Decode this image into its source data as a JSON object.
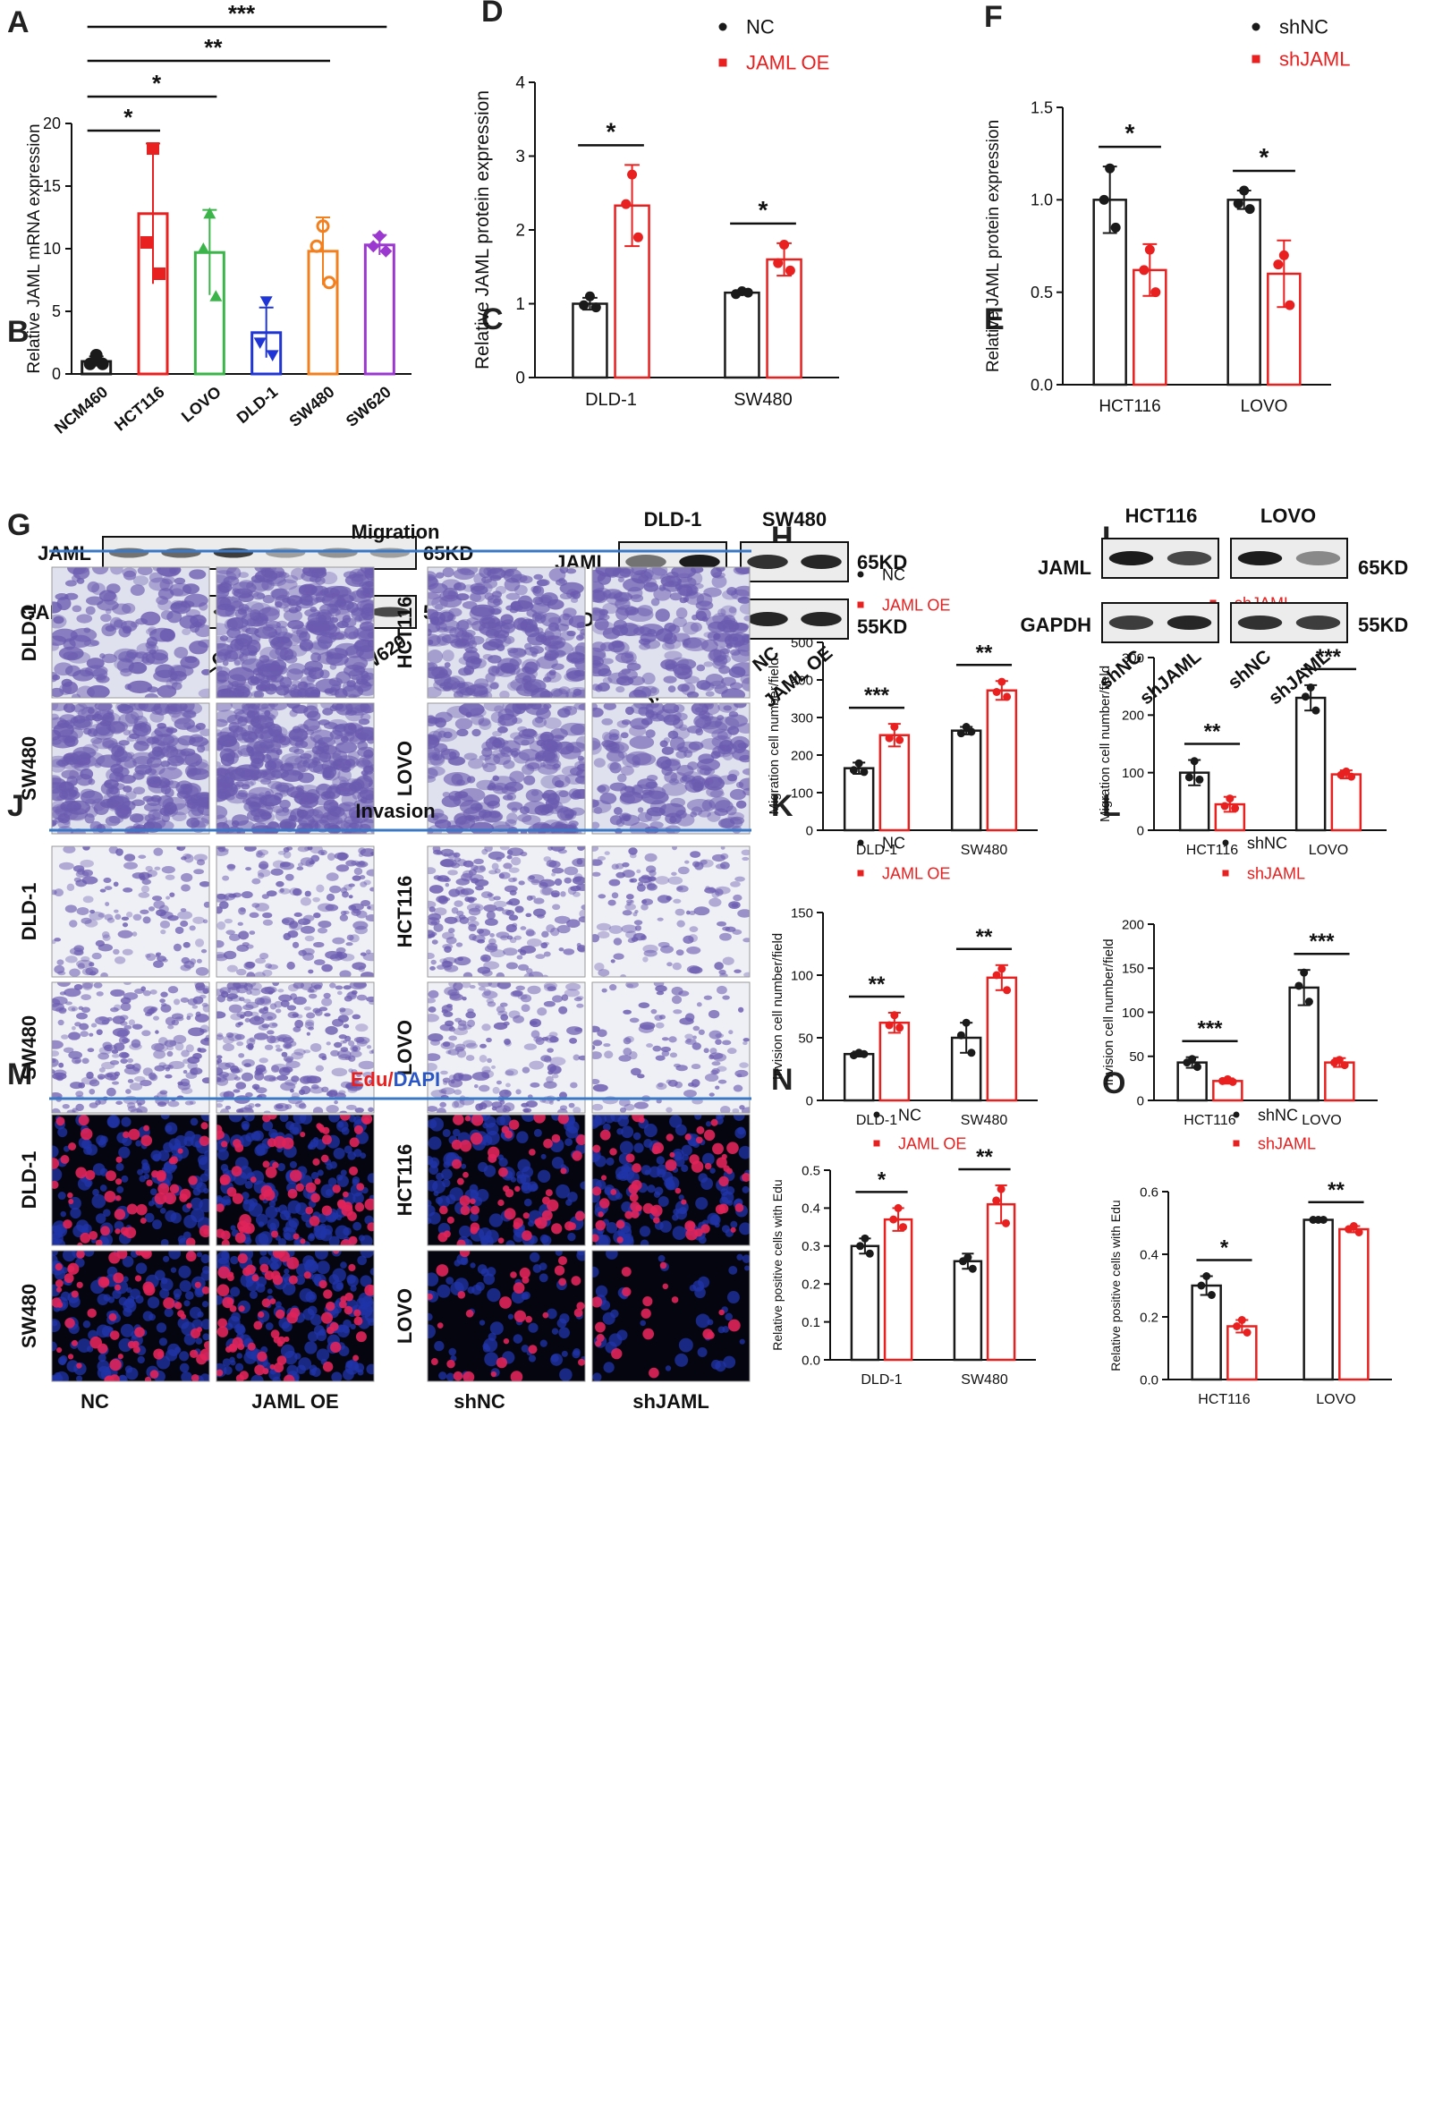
{
  "panel_letters": [
    "A",
    "B",
    "C",
    "D",
    "E",
    "F",
    "G",
    "H",
    "I",
    "J",
    "K",
    "L",
    "M",
    "N",
    "O"
  ],
  "colors": {
    "black": "#1a1a1a",
    "red": "#e8201f",
    "green": "#3bb54a",
    "blue": "#1f35d6",
    "orange": "#f2801f",
    "purple": "#9b38d0",
    "section_line": "#3a78c6",
    "stain_violet": "#6b5bb0",
    "edu_red": "#e0245a",
    "dapi_blue": "#2034a8"
  },
  "blots": {
    "B": {
      "rows": [
        "JAML",
        "GAPDH"
      ],
      "sizes": [
        "65KD",
        "55KD"
      ],
      "lanes": [
        "NCM460",
        "HCT116",
        "LOVO",
        "DLD-1",
        "SW480",
        "SW620"
      ]
    },
    "C": {
      "groups": [
        "DLD-1",
        "SW480"
      ],
      "rows": [
        "JAML",
        "GAPDH"
      ],
      "sizes": [
        "65KD",
        "55KD"
      ],
      "lanes": [
        "NC",
        "JAML OE",
        "NC",
        "JAML OE"
      ]
    },
    "E": {
      "groups": [
        "HCT116",
        "LOVO"
      ],
      "rows": [
        "JAML",
        "GAPDH"
      ],
      "sizes": [
        "65KD",
        "55KD"
      ],
      "lanes": [
        "shNC",
        "shJAML",
        "shNC",
        "shJAML"
      ]
    }
  },
  "image_panels": {
    "G": {
      "title": "Migration",
      "left_rows": [
        "DLD-1",
        "SW480"
      ],
      "right_rows": [
        "HCT116",
        "LOVO"
      ],
      "left_cols": [
        "NC",
        "JAML OE"
      ],
      "right_cols": [
        "shNC",
        "shJAML"
      ]
    },
    "J": {
      "title": "Invasion",
      "left_rows": [
        "DLD-1",
        "SW480"
      ],
      "right_rows": [
        "HCT116",
        "LOVO"
      ],
      "left_cols": [
        "NC",
        "JAML OE"
      ],
      "right_cols": [
        "shNC",
        "shJAML"
      ]
    },
    "M": {
      "title_part1": "Edu",
      "title_sep": "/",
      "title_part2": "DAPI",
      "left_rows": [
        "DLD-1",
        "SW480"
      ],
      "right_rows": [
        "HCT116",
        "LOVO"
      ],
      "left_cols": [
        "NC",
        "JAML OE"
      ],
      "right_cols": [
        "shNC",
        "shJAML"
      ]
    }
  },
  "chart_data": [
    {
      "panel": "A",
      "type": "bar",
      "ylabel": "Relative JAML mRNA expression",
      "categories": [
        "NCM460",
        "HCT116",
        "LOVO",
        "DLD-1",
        "SW480",
        "SW620"
      ],
      "values": [
        1.0,
        12.8,
        9.7,
        3.3,
        9.8,
        10.3
      ],
      "errors": [
        0.4,
        5.6,
        3.4,
        2.0,
        2.7,
        0.8
      ],
      "points": [
        [
          1.5,
          0.8,
          0.8
        ],
        [
          18.0,
          10.5,
          8.0
        ],
        [
          12.8,
          10.0,
          6.2
        ],
        [
          5.8,
          2.5,
          1.5
        ],
        [
          11.8,
          10.2,
          7.3
        ],
        [
          11.0,
          10.2,
          9.8
        ]
      ],
      "colors": [
        "#1a1a1a",
        "#e8201f",
        "#3bb54a",
        "#1f35d6",
        "#f2801f",
        "#9b38d0"
      ],
      "markers": [
        "circle",
        "square",
        "triangle",
        "triangle-down",
        "circle-open",
        "diamond"
      ],
      "ylim": [
        0,
        20
      ],
      "yticks": [
        0,
        5,
        10,
        15,
        20
      ],
      "significance": [
        {
          "from": 0,
          "to": 1,
          "label": "*"
        },
        {
          "from": 0,
          "to": 2,
          "label": "*"
        },
        {
          "from": 0,
          "to": 4,
          "label": "**"
        },
        {
          "from": 0,
          "to": 5,
          "label": "***"
        }
      ]
    },
    {
      "panel": "D",
      "type": "bar",
      "ylabel": "Relative JAML protein expression",
      "categories": [
        "DLD-1",
        "SW480"
      ],
      "legend_position": "top",
      "series": [
        {
          "name": "NC",
          "values": [
            1.0,
            1.15
          ],
          "errors": [
            0.08,
            0.03
          ],
          "points": [
            [
              1.1,
              0.98,
              0.95
            ],
            [
              1.17,
              1.13,
              1.15
            ]
          ]
        },
        {
          "name": "JAML OE",
          "values": [
            2.33,
            1.6
          ],
          "errors": [
            0.55,
            0.22
          ],
          "points": [
            [
              2.75,
              2.35,
              1.9
            ],
            [
              1.8,
              1.55,
              1.45
            ]
          ]
        }
      ],
      "ylim": [
        0,
        4
      ],
      "yticks": [
        0,
        1,
        2,
        3,
        4
      ],
      "significance": [
        "*",
        "*"
      ]
    },
    {
      "panel": "F",
      "type": "bar",
      "ylabel": "Relative JAML protein expression",
      "categories": [
        "HCT116",
        "LOVO"
      ],
      "legend_position": "top",
      "series": [
        {
          "name": "shNC",
          "values": [
            1.0,
            1.0
          ],
          "errors": [
            0.18,
            0.05
          ],
          "points": [
            [
              1.17,
              1.0,
              0.85
            ],
            [
              1.05,
              0.98,
              0.95
            ]
          ]
        },
        {
          "name": "shJAML",
          "values": [
            0.62,
            0.6
          ],
          "errors": [
            0.14,
            0.18
          ],
          "points": [
            [
              0.73,
              0.62,
              0.5
            ],
            [
              0.7,
              0.65,
              0.43
            ]
          ]
        }
      ],
      "ylim": [
        0,
        1.5
      ],
      "yticks": [
        0.0,
        0.5,
        1.0,
        1.5
      ],
      "significance": [
        "*",
        "*"
      ]
    },
    {
      "panel": "H",
      "type": "bar",
      "ylabel": "Migration cell number/field",
      "categories": [
        "DLD-1",
        "SW480"
      ],
      "legend_position": "top",
      "series": [
        {
          "name": "NC",
          "values": [
            165,
            265
          ],
          "errors": [
            15,
            10
          ],
          "points": [
            [
              178,
              160,
              155
            ],
            [
              275,
              258,
              262
            ]
          ]
        },
        {
          "name": "JAML OE",
          "values": [
            253,
            372
          ],
          "errors": [
            30,
            25
          ],
          "points": [
            [
              275,
              245,
              240
            ],
            [
              395,
              368,
              355
            ]
          ]
        }
      ],
      "ylim": [
        0,
        500
      ],
      "yticks": [
        0,
        100,
        200,
        300,
        400,
        500
      ],
      "significance": [
        "***",
        "**"
      ]
    },
    {
      "panel": "I",
      "type": "bar",
      "ylabel": "Migration cell number/field",
      "categories": [
        "HCT116",
        "LOVO"
      ],
      "legend_position": "top",
      "series": [
        {
          "name": "shNC",
          "values": [
            100,
            230
          ],
          "errors": [
            22,
            22
          ],
          "points": [
            [
              120,
              92,
              88
            ],
            [
              248,
              232,
              208
            ]
          ]
        },
        {
          "name": "shJAML",
          "values": [
            45,
            97
          ],
          "errors": [
            13,
            7
          ],
          "points": [
            [
              55,
              42,
              38
            ],
            [
              102,
              96,
              93
            ]
          ]
        }
      ],
      "ylim": [
        0,
        300
      ],
      "yticks": [
        0,
        100,
        200,
        300
      ],
      "significance": [
        "**",
        "***"
      ]
    },
    {
      "panel": "K",
      "type": "bar",
      "ylabel": "Invision cell number/field",
      "categories": [
        "DLD-1",
        "SW480"
      ],
      "legend_position": "top",
      "series": [
        {
          "name": "NC",
          "values": [
            37,
            50
          ],
          "errors": [
            2,
            12
          ],
          "points": [
            [
              38,
              36,
              37
            ],
            [
              62,
              52,
              38
            ]
          ]
        },
        {
          "name": "JAML OE",
          "values": [
            62,
            98
          ],
          "errors": [
            8,
            10
          ],
          "points": [
            [
              68,
              60,
              58
            ],
            [
              105,
              100,
              88
            ]
          ]
        }
      ],
      "ylim": [
        0,
        150
      ],
      "yticks": [
        0,
        50,
        100,
        150
      ],
      "significance": [
        "**",
        "**"
      ]
    },
    {
      "panel": "L",
      "type": "bar",
      "ylabel": "Invision cell number/field",
      "categories": [
        "HCT116",
        "LOVO"
      ],
      "legend_position": "top",
      "series": [
        {
          "name": "shNC",
          "values": [
            43,
            128
          ],
          "errors": [
            6,
            20
          ],
          "points": [
            [
              47,
              43,
              38
            ],
            [
              145,
              130,
              112
            ]
          ]
        },
        {
          "name": "shJAML",
          "values": [
            22,
            43
          ],
          "errors": [
            3,
            5
          ],
          "points": [
            [
              24,
              22,
              21
            ],
            [
              46,
              43,
              40
            ]
          ]
        }
      ],
      "ylim": [
        0,
        200
      ],
      "yticks": [
        0,
        50,
        100,
        150,
        200
      ],
      "significance": [
        "***",
        "***"
      ]
    },
    {
      "panel": "N",
      "type": "bar",
      "ylabel": "Relative positive cells with Edu",
      "categories": [
        "DLD-1",
        "SW480"
      ],
      "legend_position": "top",
      "series": [
        {
          "name": "NC",
          "values": [
            0.3,
            0.26
          ],
          "errors": [
            0.02,
            0.02
          ],
          "points": [
            [
              0.32,
              0.3,
              0.28
            ],
            [
              0.27,
              0.26,
              0.24
            ]
          ]
        },
        {
          "name": "JAML OE",
          "values": [
            0.37,
            0.41
          ],
          "errors": [
            0.03,
            0.05
          ],
          "points": [
            [
              0.4,
              0.37,
              0.35
            ],
            [
              0.45,
              0.42,
              0.36
            ]
          ]
        }
      ],
      "ylim": [
        0,
        0.5
      ],
      "yticks": [
        0.0,
        0.1,
        0.2,
        0.3,
        0.4,
        0.5
      ],
      "significance": [
        "*",
        "**"
      ]
    },
    {
      "panel": "O",
      "type": "bar",
      "ylabel": "Relative positive cells with Edu",
      "categories": [
        "HCT116",
        "LOVO"
      ],
      "legend_position": "top",
      "series": [
        {
          "name": "shNC",
          "values": [
            0.3,
            0.51
          ],
          "errors": [
            0.03,
            0.005
          ],
          "points": [
            [
              0.33,
              0.3,
              0.27
            ],
            [
              0.51,
              0.51,
              0.51
            ]
          ]
        },
        {
          "name": "shJAML",
          "values": [
            0.17,
            0.48
          ],
          "errors": [
            0.02,
            0.01
          ],
          "points": [
            [
              0.19,
              0.17,
              0.15
            ],
            [
              0.49,
              0.48,
              0.47
            ]
          ]
        }
      ],
      "ylim": [
        0,
        0.6
      ],
      "yticks": [
        0.0,
        0.2,
        0.4,
        0.6
      ],
      "significance": [
        "*",
        "**"
      ]
    }
  ]
}
